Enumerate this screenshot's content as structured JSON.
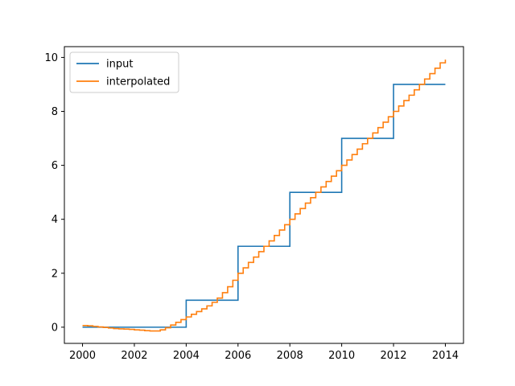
{
  "chart_data": {
    "type": "line",
    "title": "",
    "xlabel": "",
    "ylabel": "",
    "xlim": [
      1999.3,
      2014.7
    ],
    "ylim": [
      -0.6,
      10.4
    ],
    "xticks": [
      2000,
      2002,
      2004,
      2006,
      2008,
      2010,
      2012,
      2014
    ],
    "yticks": [
      0,
      2,
      4,
      6,
      8,
      10
    ],
    "grid": false,
    "legend_position": "top-left",
    "series": [
      {
        "name": "input",
        "color": "#1f77b4",
        "drawstyle": "steps-post",
        "x": [
          2000,
          2002,
          2004,
          2006,
          2008,
          2010,
          2012,
          2014
        ],
        "y": [
          0,
          0,
          1,
          3,
          5,
          7,
          9,
          9
        ]
      },
      {
        "name": "interpolated",
        "color": "#ff7f0e",
        "drawstyle": "steps-post",
        "x": [
          2000.0,
          2000.2,
          2000.4,
          2000.6,
          2000.8,
          2001.0,
          2001.2,
          2001.4,
          2001.6,
          2001.8,
          2002.0,
          2002.2,
          2002.4,
          2002.6,
          2002.8,
          2003.0,
          2003.2,
          2003.4,
          2003.6,
          2003.8,
          2004.0,
          2004.2,
          2004.4,
          2004.6,
          2004.8,
          2005.0,
          2005.2,
          2005.4,
          2005.6,
          2005.8,
          2006.0,
          2006.2,
          2006.4,
          2006.6,
          2006.8,
          2007.0,
          2007.2,
          2007.4,
          2007.6,
          2007.8,
          2008.0,
          2008.2,
          2008.4,
          2008.6,
          2008.8,
          2009.0,
          2009.2,
          2009.4,
          2009.6,
          2009.8,
          2010.0,
          2010.2,
          2010.4,
          2010.6,
          2010.8,
          2011.0,
          2011.2,
          2011.4,
          2011.6,
          2011.8,
          2012.0,
          2012.2,
          2012.4,
          2012.6,
          2012.8,
          2013.0,
          2013.2,
          2013.4,
          2013.6,
          2013.8,
          2014.0
        ],
        "y": [
          0.06,
          0.05,
          0.03,
          0.01,
          -0.01,
          -0.03,
          -0.05,
          -0.06,
          -0.07,
          -0.08,
          -0.1,
          -0.11,
          -0.13,
          -0.14,
          -0.14,
          -0.1,
          -0.02,
          0.08,
          0.18,
          0.28,
          0.38,
          0.48,
          0.58,
          0.68,
          0.79,
          0.92,
          1.08,
          1.28,
          1.5,
          1.74,
          2.0,
          2.2,
          2.4,
          2.6,
          2.8,
          3.0,
          3.2,
          3.4,
          3.6,
          3.8,
          4.0,
          4.2,
          4.4,
          4.6,
          4.8,
          5.0,
          5.2,
          5.4,
          5.6,
          5.8,
          6.0,
          6.2,
          6.4,
          6.6,
          6.8,
          7.0,
          7.2,
          7.4,
          7.6,
          7.8,
          8.0,
          8.2,
          8.4,
          8.6,
          8.8,
          9.0,
          9.2,
          9.4,
          9.6,
          9.8,
          9.92
        ]
      }
    ]
  }
}
